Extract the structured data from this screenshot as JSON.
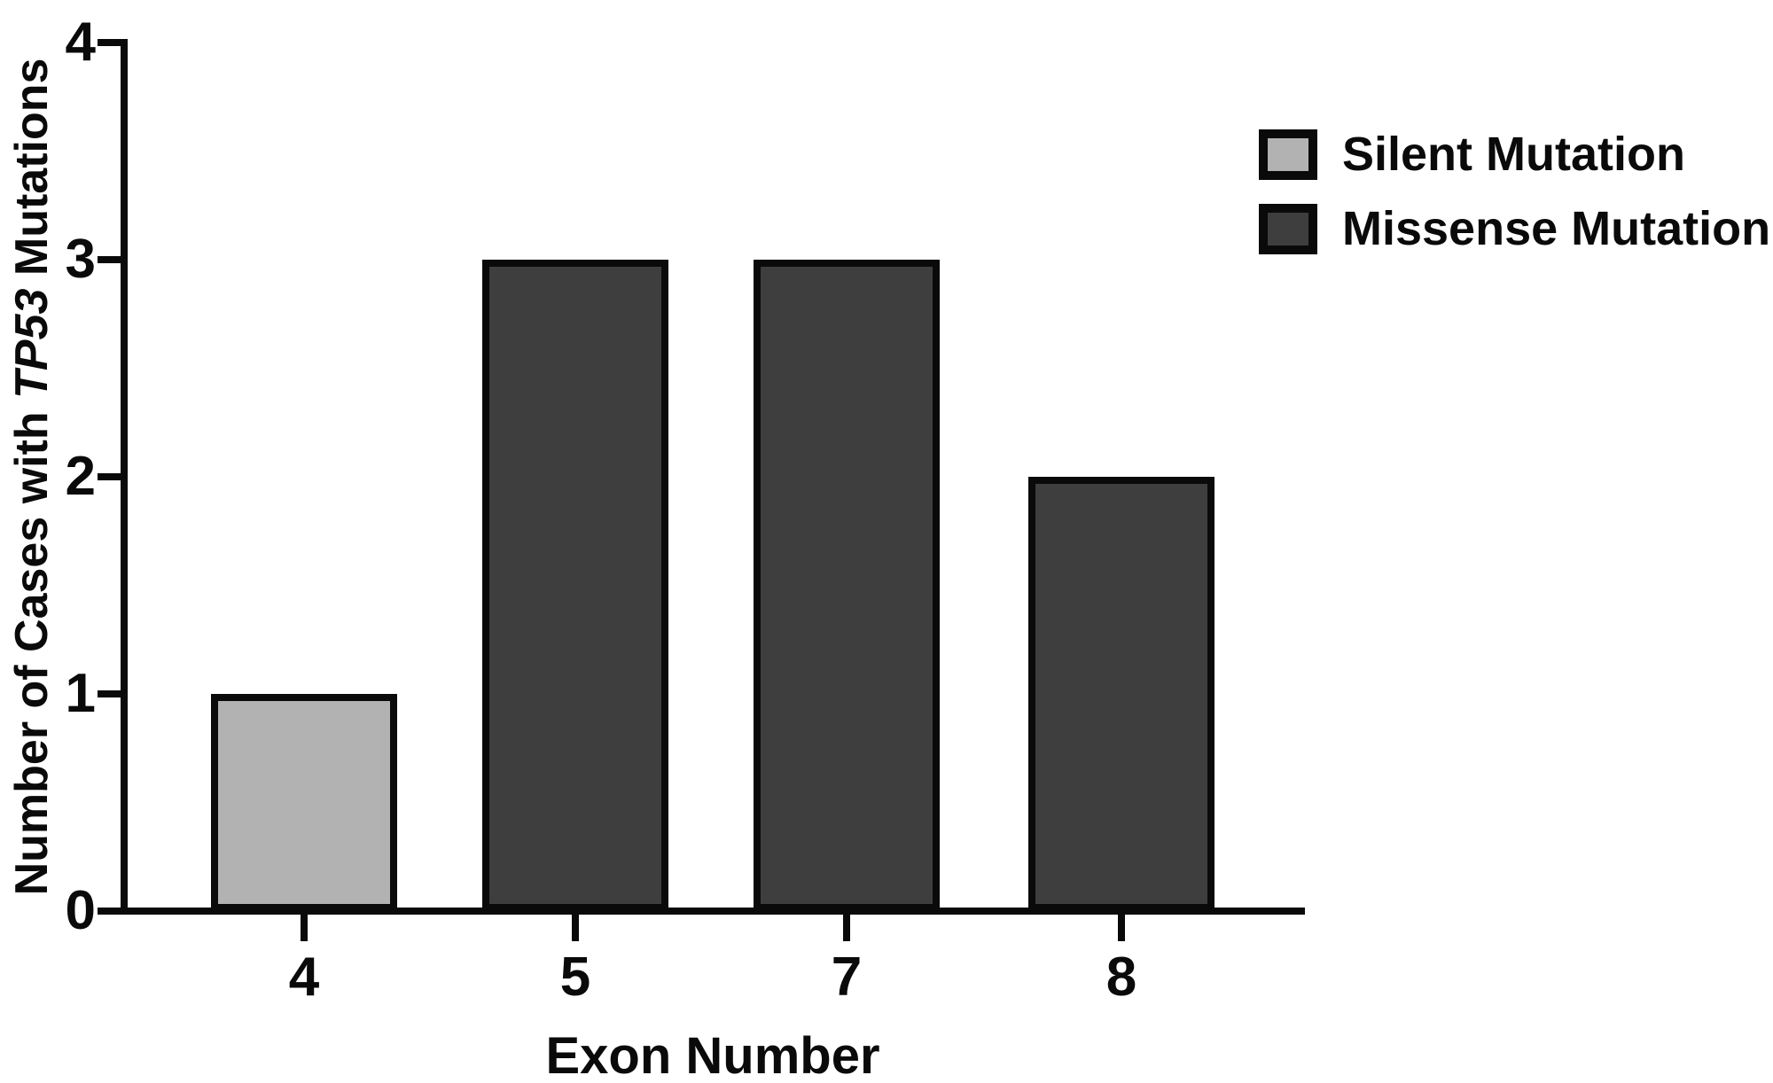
{
  "figure": {
    "background": "#ffffff"
  },
  "chart_data": {
    "type": "bar",
    "title": "",
    "xlabel": "Exon Number",
    "ylabel": "Number of Cases with TP53 Mutations",
    "ylabel_parts": {
      "prefix": "Number of Cases with ",
      "italic_gene": "TP53",
      "suffix": " Mutations"
    },
    "categories": [
      "4",
      "5",
      "7",
      "8"
    ],
    "values": [
      1,
      3,
      3,
      2
    ],
    "bar_series": [
      "Silent Mutation",
      "Missense Mutation",
      "Missense Mutation",
      "Missense Mutation"
    ],
    "ylim": [
      0,
      4
    ],
    "yticks": [
      "0",
      "1",
      "2",
      "3",
      "4"
    ],
    "grid": false,
    "legend_position": "top-right",
    "legend": [
      {
        "label": "Silent Mutation",
        "color_key": "silent"
      },
      {
        "label": "Missense Mutation",
        "color_key": "missense"
      }
    ],
    "colors": {
      "silent": "#b2b2b2",
      "missense": "#3e3e3e",
      "outline": "#0a0a0a"
    }
  }
}
